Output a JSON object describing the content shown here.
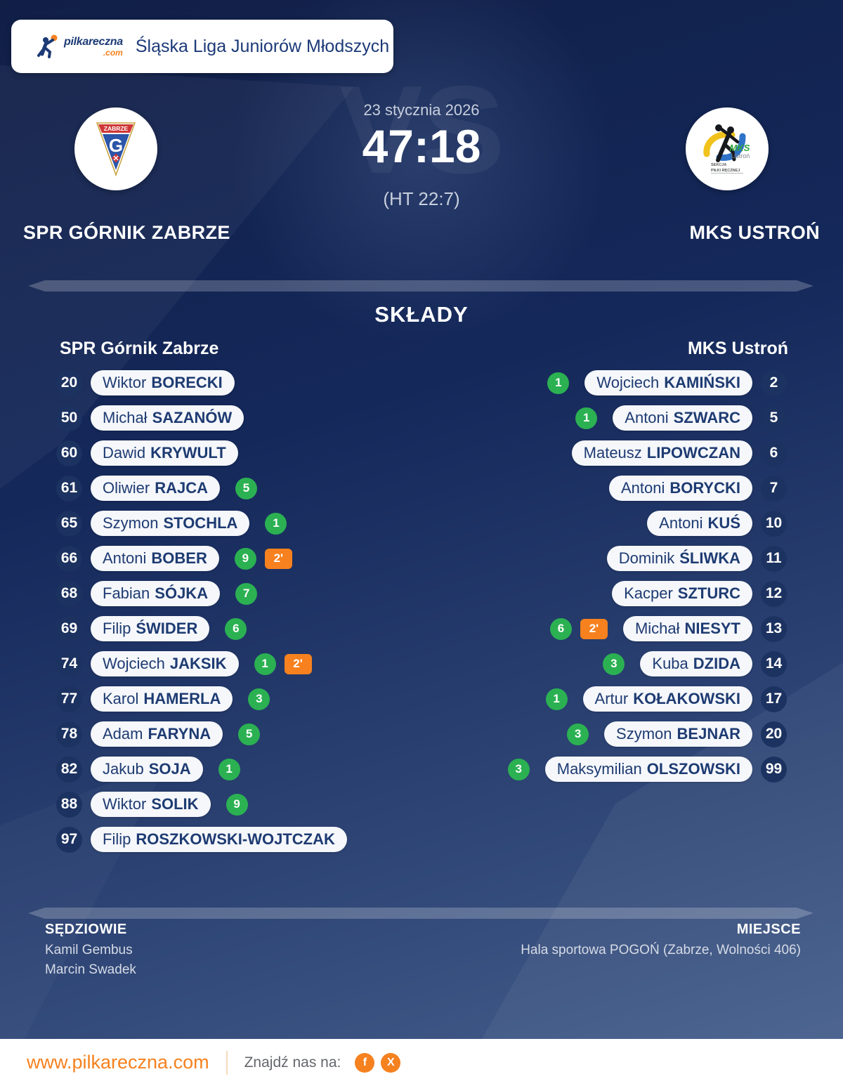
{
  "colors": {
    "accent_orange": "#f5811f",
    "goal_green": "#2bb152",
    "navy_text": "#1e3b72",
    "background_navy": "#14285a"
  },
  "league_bar": {
    "title": "Śląska Liga Juniorów Młodszych",
    "logo_name": "pilkareczna",
    "logo_tld": ".com"
  },
  "match": {
    "date": "23 stycznia 2026",
    "score": "47:18",
    "halftime": "(HT 22:7)",
    "vs": "VS",
    "home": {
      "name": "SPR GÓRNIK ZABRZE",
      "crest": {
        "city": "ZABRZE",
        "letter": "G"
      }
    },
    "away": {
      "name": "MKS USTROŃ",
      "crest": {
        "mks": "MKS",
        "town": "Ustroń",
        "section1": "SEKCJA",
        "section2": "PIŁKI RĘCZNEJ"
      }
    }
  },
  "lineups": {
    "title": "SKŁADY",
    "home_header": "SPR Górnik Zabrze",
    "away_header": "MKS Ustroń",
    "home_players": [
      {
        "number": "20",
        "first": "Wiktor",
        "last": "BORECKI",
        "goals": null,
        "susp": null
      },
      {
        "number": "50",
        "first": "Michał",
        "last": "SAZANÓW",
        "goals": null,
        "susp": null
      },
      {
        "number": "60",
        "first": "Dawid",
        "last": "KRYWULT",
        "goals": null,
        "susp": null
      },
      {
        "number": "61",
        "first": "Oliwier",
        "last": "RAJCA",
        "goals": "5",
        "susp": null
      },
      {
        "number": "65",
        "first": "Szymon",
        "last": "STOCHLA",
        "goals": "1",
        "susp": null
      },
      {
        "number": "66",
        "first": "Antoni",
        "last": "BOBER",
        "goals": "9",
        "susp": "2'"
      },
      {
        "number": "68",
        "first": "Fabian",
        "last": "SÓJKA",
        "goals": "7",
        "susp": null
      },
      {
        "number": "69",
        "first": "Filip",
        "last": "ŚWIDER",
        "goals": "6",
        "susp": null
      },
      {
        "number": "74",
        "first": "Wojciech",
        "last": "JAKSIK",
        "goals": "1",
        "susp": "2'"
      },
      {
        "number": "77",
        "first": "Karol",
        "last": "HAMERLA",
        "goals": "3",
        "susp": null
      },
      {
        "number": "78",
        "first": "Adam",
        "last": "FARYNA",
        "goals": "5",
        "susp": null
      },
      {
        "number": "82",
        "first": "Jakub",
        "last": "SOJA",
        "goals": "1",
        "susp": null
      },
      {
        "number": "88",
        "first": "Wiktor",
        "last": "SOLIK",
        "goals": "9",
        "susp": null
      },
      {
        "number": "97",
        "first": "Filip",
        "last": "ROSZKOWSKI-WOJTCZAK",
        "goals": null,
        "susp": null
      }
    ],
    "away_players": [
      {
        "number": "2",
        "first": "Wojciech",
        "last": "KAMIŃSKI",
        "goals": "1",
        "susp": null
      },
      {
        "number": "5",
        "first": "Antoni",
        "last": "SZWARC",
        "goals": "1",
        "susp": null
      },
      {
        "number": "6",
        "first": "Mateusz",
        "last": "LIPOWCZAN",
        "goals": null,
        "susp": null
      },
      {
        "number": "7",
        "first": "Antoni",
        "last": "BORYCKI",
        "goals": null,
        "susp": null
      },
      {
        "number": "10",
        "first": "Antoni",
        "last": "KUŚ",
        "goals": null,
        "susp": null
      },
      {
        "number": "11",
        "first": "Dominik",
        "last": "ŚLIWKA",
        "goals": null,
        "susp": null
      },
      {
        "number": "12",
        "first": "Kacper",
        "last": "SZTURC",
        "goals": null,
        "susp": null
      },
      {
        "number": "13",
        "first": "Michał",
        "last": "NIESYT",
        "goals": "6",
        "susp": "2'"
      },
      {
        "number": "14",
        "first": "Kuba",
        "last": "DZIDA",
        "goals": "3",
        "susp": null
      },
      {
        "number": "17",
        "first": "Artur",
        "last": "KOŁAKOWSKI",
        "goals": "1",
        "susp": null
      },
      {
        "number": "20",
        "first": "Szymon",
        "last": "BEJNAR",
        "goals": "3",
        "susp": null
      },
      {
        "number": "99",
        "first": "Maksymilian",
        "last": "OLSZOWSKI",
        "goals": "3",
        "susp": null
      }
    ]
  },
  "info": {
    "referees_label": "SĘDZIOWIE",
    "referees": [
      "Kamil Gembus",
      "Marcin Swadek"
    ],
    "venue_label": "MIEJSCE",
    "venue": "Hala sportowa POGOŃ (Zabrze, Wolności 406)"
  },
  "bottom": {
    "website": "www.pilkareczna.com",
    "find_us": "Znajdź nas na:",
    "social": [
      {
        "name": "facebook",
        "glyph": "f"
      },
      {
        "name": "x",
        "glyph": "X"
      }
    ]
  }
}
